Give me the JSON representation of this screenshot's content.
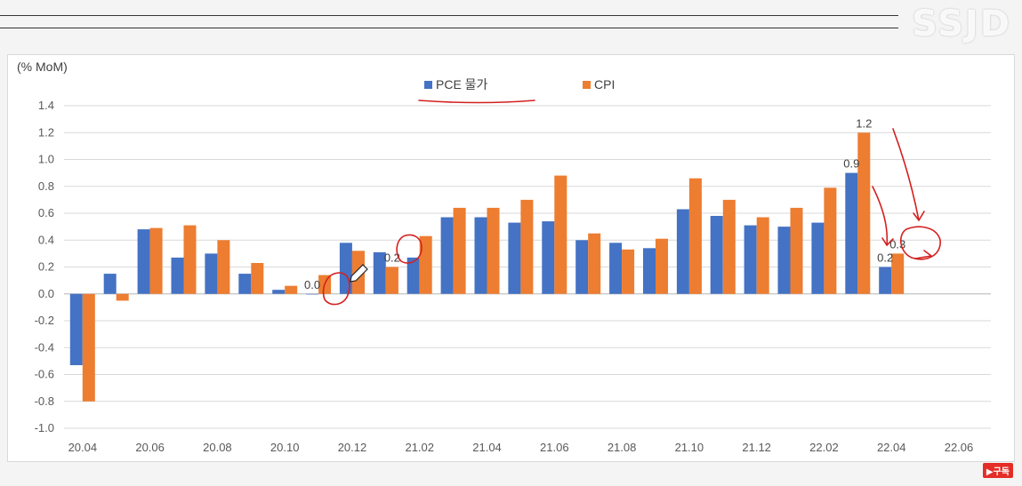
{
  "watermark": "SSJD",
  "subscribe_badge": "▶구독",
  "chart_data": {
    "type": "bar",
    "ylabel": "(% MoM)",
    "ylim": [
      -1.0,
      1.4
    ],
    "ytick_step": 0.2,
    "grid": true,
    "legend_position": "top-center",
    "x_tick_labels": [
      "20.04",
      "20.06",
      "20.08",
      "20.10",
      "20.12",
      "21.02",
      "21.04",
      "21.06",
      "21.08",
      "21.10",
      "21.12",
      "22.02",
      "22.04",
      "22.06"
    ],
    "categories": [
      "20.04",
      "20.05",
      "20.06",
      "20.07",
      "20.08",
      "20.09",
      "20.10",
      "20.11",
      "20.12",
      "21.01",
      "21.02",
      "21.03",
      "21.04",
      "21.05",
      "21.06",
      "21.07",
      "21.08",
      "21.09",
      "21.10",
      "21.11",
      "21.12",
      "22.01",
      "22.02",
      "22.03",
      "22.04"
    ],
    "series": [
      {
        "name": "PCE 물가",
        "color": "#4472C4",
        "values": [
          -0.53,
          0.15,
          0.48,
          0.27,
          0.3,
          0.15,
          0.03,
          0.0,
          0.38,
          0.31,
          0.27,
          0.57,
          0.57,
          0.53,
          0.54,
          0.4,
          0.38,
          0.34,
          0.63,
          0.58,
          0.51,
          0.5,
          0.53,
          0.9,
          0.2
        ]
      },
      {
        "name": "CPI",
        "color": "#ED7D31",
        "values": [
          -0.8,
          -0.05,
          0.49,
          0.51,
          0.4,
          0.23,
          0.06,
          0.14,
          0.32,
          0.2,
          0.43,
          0.64,
          0.64,
          0.7,
          0.88,
          0.45,
          0.33,
          0.41,
          0.86,
          0.7,
          0.57,
          0.64,
          0.79,
          1.2,
          0.3
        ]
      }
    ],
    "data_labels": [
      {
        "series": 0,
        "category": "20.11",
        "text": "0.0"
      },
      {
        "series": 1,
        "category": "21.01",
        "text": "0.2"
      },
      {
        "series": 0,
        "category": "22.03",
        "text": "0.9"
      },
      {
        "series": 1,
        "category": "22.03",
        "text": "1.2"
      },
      {
        "series": 0,
        "category": "22.04",
        "text": "0.2"
      },
      {
        "series": 1,
        "category": "22.04",
        "text": "0.3"
      }
    ]
  }
}
